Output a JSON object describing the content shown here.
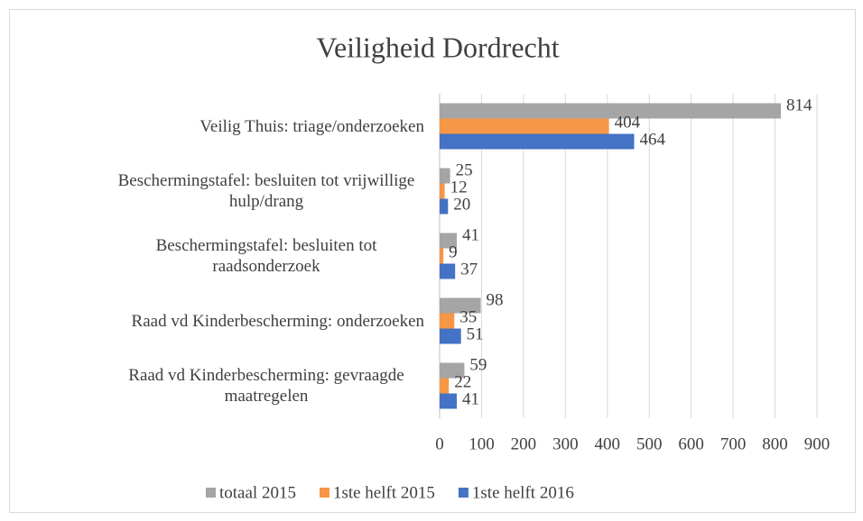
{
  "chart_data": {
    "type": "hbar",
    "title": "Veiligheid Dordrecht",
    "categories": [
      "Veilig Thuis: triage/onderzoeken",
      "Beschermingstafel: besluiten tot vrijwillige hulp/drang",
      "Beschermingstafel: besluiten tot raadsonderzoek",
      "Raad vd Kinderbescherming: onderzoeken",
      "Raad vd Kinderbescherming: gevraagde maatregelen"
    ],
    "series": [
      {
        "name": "totaal 2015",
        "color": "#a5a5a5",
        "values": [
          814,
          25,
          41,
          98,
          59
        ]
      },
      {
        "name": "1ste helft 2015",
        "color": "#f79646",
        "values": [
          404,
          12,
          9,
          35,
          22
        ]
      },
      {
        "name": "1ste helft 2016",
        "color": "#4472c4",
        "values": [
          464,
          20,
          37,
          51,
          41
        ]
      }
    ],
    "xlim": [
      0,
      900
    ],
    "xticks": [
      0,
      100,
      200,
      300,
      400,
      500,
      600,
      700,
      800,
      900
    ],
    "grid": true,
    "legend": "bottom"
  }
}
